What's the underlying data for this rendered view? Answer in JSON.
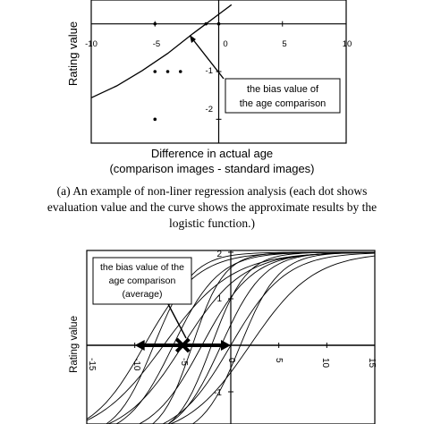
{
  "panel_a": {
    "tick_label_top": "-10",
    "tick_label_neg5": "-5",
    "tick_label_5": "5",
    "tick_label_10": "10",
    "tick_label_0": "0",
    "tick_label_m1": "-1",
    "tick_label_m2": "-2",
    "ylabel": "Rating value",
    "xlabel_line1": "Difference in actual age",
    "xlabel_line2": "(comparison images - standard images)",
    "annotation_line1": "the bias value of",
    "annotation_line2": "the age comparison",
    "caption_line1": "(a) An example of non-liner regression analysis (each dot shows",
    "caption_line2": "evaluation value and the curve shows the approximate results by the",
    "caption_line3": "logistic function.)"
  },
  "panel_b": {
    "ylabel": "Rating value",
    "tick_y_2": "2",
    "tick_y_1": "1",
    "tick_y_m1": "-1",
    "tick_y_m2": "-2",
    "tick_x_m15": "-15",
    "tick_x_m10": "-10",
    "tick_x_m5": "-5",
    "tick_x_0": "0",
    "tick_x_5": "5",
    "tick_x_10": "10",
    "tick_x_15": "15",
    "annotation_line1": "the bias value of the",
    "annotation_line2": "age comparison",
    "annotation_line3": "(average)"
  },
  "chart_data": [
    {
      "type": "scatter",
      "title": "",
      "xlabel": "Difference in actual age (comparison images - standard images)",
      "ylabel": "Rating value",
      "xlim": [
        -10,
        10
      ],
      "ylim": [
        -2.5,
        0.5
      ],
      "points": [
        {
          "x": -5,
          "y": 0
        },
        {
          "x": -1,
          "y": 0
        },
        {
          "x": 0,
          "y": 0
        },
        {
          "x": 0,
          "y": 0
        },
        {
          "x": -5,
          "y": -1
        },
        {
          "x": -4,
          "y": -1
        },
        {
          "x": -3,
          "y": -1
        },
        {
          "x": -5,
          "y": -2
        }
      ],
      "curve": {
        "name": "logistic fit",
        "x": [
          -10,
          -8,
          -6,
          -4,
          -2,
          -1,
          0,
          1
        ],
        "y": [
          -1.55,
          -1.3,
          -0.98,
          -0.62,
          -0.2,
          0.0,
          0.2,
          0.4
        ]
      },
      "bias_value": -2.5
    },
    {
      "type": "line",
      "title": "",
      "xlabel": "",
      "ylabel": "Rating value",
      "xlim": [
        -15,
        15
      ],
      "ylim": [
        -2,
        2
      ],
      "grid": false,
      "bias_average": -5,
      "bias_range": [
        -10,
        0
      ],
      "series": [
        {
          "x0": -3,
          "k": 0.38
        },
        {
          "x0": -5,
          "k": 0.32
        },
        {
          "x0": -7,
          "k": 0.28
        },
        {
          "x0": -1,
          "k": 0.45
        },
        {
          "x0": -8,
          "k": 0.5
        },
        {
          "x0": -4,
          "k": 0.6
        },
        {
          "x0": 0,
          "k": 0.35
        },
        {
          "x0": -6,
          "k": 0.42
        },
        {
          "x0": 2,
          "k": 0.3
        },
        {
          "x0": -9,
          "k": 0.36
        },
        {
          "x0": -2,
          "k": 0.55
        },
        {
          "x0": 1,
          "k": 0.5
        }
      ]
    }
  ]
}
